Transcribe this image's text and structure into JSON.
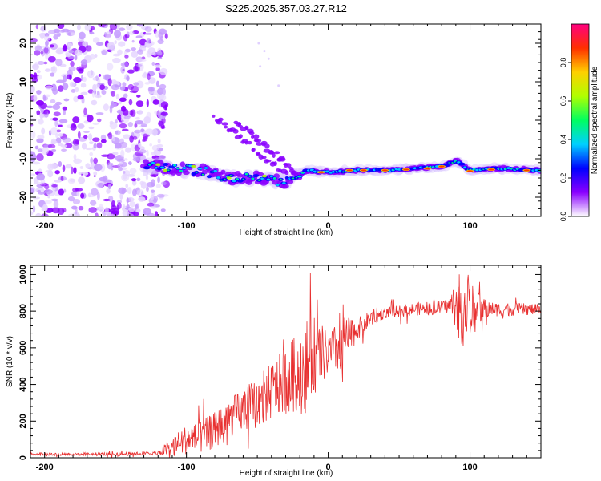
{
  "title": "S225.2025.357.03.27.R12",
  "chart_data": [
    {
      "type": "heatmap",
      "xlabel": "Height of straight line (km)",
      "ylabel": "Frequency (Hz)",
      "xlim": [
        -210,
        150
      ],
      "ylim": [
        -25,
        25
      ],
      "x_ticks": [
        -200,
        -100,
        0,
        100
      ],
      "y_ticks": [
        -20,
        -10,
        0,
        10,
        20
      ],
      "colorbar": {
        "label": "Normalized spectral amplitude",
        "range": [
          0,
          1
        ],
        "ticks": [
          "0.0",
          "0.2",
          "0.4",
          "0.6",
          "0.8"
        ],
        "colors": [
          "#ffffff",
          "#8a00ff",
          "#0000ff",
          "#00d0ff",
          "#00ff60",
          "#b0ff00",
          "#ffd000",
          "#ff3000",
          "#ff0080"
        ]
      },
      "features": {
        "noise_region_x": [
          -210,
          -120
        ],
        "main_track": [
          {
            "x": -130,
            "f": -11.5
          },
          {
            "x": -110,
            "f": -12.5
          },
          {
            "x": -90,
            "f": -13
          },
          {
            "x": -70,
            "f": -15
          },
          {
            "x": -50,
            "f": -15
          },
          {
            "x": -30,
            "f": -16
          },
          {
            "x": -15,
            "f": -13
          },
          {
            "x": 0,
            "f": -13.5
          },
          {
            "x": 20,
            "f": -13
          },
          {
            "x": 40,
            "f": -13
          },
          {
            "x": 60,
            "f": -12.5
          },
          {
            "x": 80,
            "f": -12
          },
          {
            "x": 90,
            "f": -10.5
          },
          {
            "x": 100,
            "f": -13
          },
          {
            "x": 120,
            "f": -12.5
          },
          {
            "x": 150,
            "f": -13
          }
        ],
        "diagonal_streaks": [
          {
            "x_start": -80,
            "f_start": 1,
            "x_end": -30,
            "f_end": -14
          },
          {
            "x_start": -65,
            "f_start": 0,
            "x_end": -25,
            "f_end": -13
          }
        ]
      }
    },
    {
      "type": "line",
      "xlabel": "Height of straight line (km)",
      "ylabel": "SNR (10 * v/v)",
      "xlim": [
        -210,
        150
      ],
      "ylim": [
        0,
        1050
      ],
      "x_ticks": [
        -200,
        -100,
        0,
        100
      ],
      "y_ticks": [
        0,
        200,
        400,
        600,
        800,
        1000
      ],
      "series": [
        {
          "name": "SNR",
          "color": "#e83030",
          "trend": [
            [
              -210,
              20
            ],
            [
              -150,
              20
            ],
            [
              -120,
              25
            ],
            [
              -110,
              60
            ],
            [
              -100,
              100
            ],
            [
              -90,
              110
            ],
            [
              -80,
              150
            ],
            [
              -70,
              210
            ],
            [
              -60,
              260
            ],
            [
              -50,
              300
            ],
            [
              -40,
              360
            ],
            [
              -30,
              420
            ],
            [
              -20,
              470
            ],
            [
              -15,
              500
            ],
            [
              -10,
              560
            ],
            [
              0,
              560
            ],
            [
              10,
              620
            ],
            [
              20,
              700
            ],
            [
              30,
              760
            ],
            [
              40,
              790
            ],
            [
              60,
              810
            ],
            [
              80,
              820
            ],
            [
              90,
              840
            ],
            [
              100,
              800
            ],
            [
              110,
              810
            ],
            [
              130,
              810
            ],
            [
              150,
              810
            ]
          ],
          "noise": [
            [
              -210,
              8
            ],
            [
              -120,
              10
            ],
            [
              -110,
              60
            ],
            [
              -100,
              80
            ],
            [
              -60,
              120
            ],
            [
              -30,
              180
            ],
            [
              -15,
              260
            ],
            [
              0,
              120
            ],
            [
              10,
              150
            ],
            [
              20,
              60
            ],
            [
              40,
              30
            ],
            [
              85,
              40
            ],
            [
              95,
              220
            ],
            [
              105,
              100
            ],
            [
              115,
              40
            ],
            [
              150,
              30
            ]
          ]
        }
      ]
    }
  ]
}
